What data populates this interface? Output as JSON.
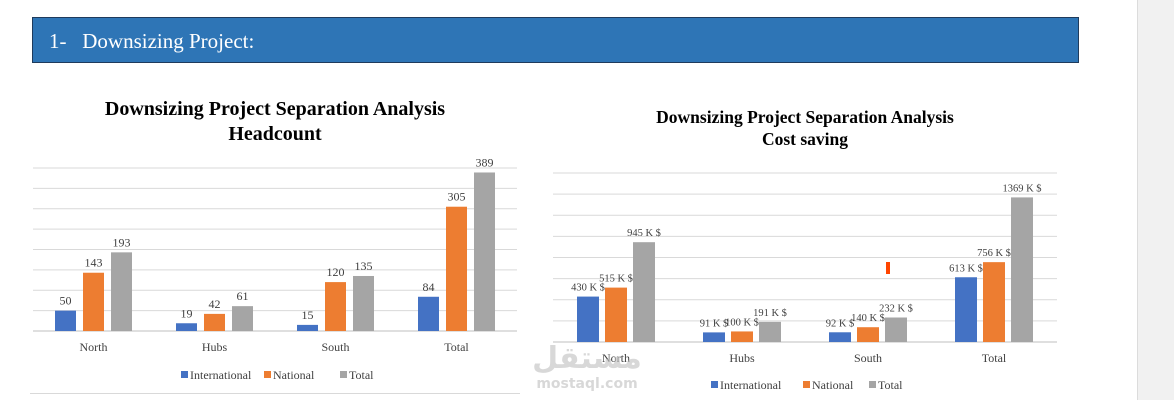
{
  "header": {
    "title": "1-   Downsizing Project:"
  },
  "colors": {
    "header_bg": "#2e75b6",
    "international": "#4472c4",
    "national": "#ed7d31",
    "total": "#a5a5a5",
    "grid": "#d9d9d9",
    "marker": "#ff4500"
  },
  "watermark": {
    "text_ar": "مستقل",
    "text_en": "mostaql.com"
  },
  "chart_data": [
    {
      "type": "bar",
      "title_line1": "Downsizing Project Separation Analysis",
      "title_line2": "Headcount",
      "categories": [
        "North",
        "Hubs",
        "South",
        "Total"
      ],
      "series": [
        {
          "name": "International",
          "values": [
            50,
            19,
            15,
            84
          ],
          "labels": [
            "50",
            "19",
            "15",
            "84"
          ]
        },
        {
          "name": "National",
          "values": [
            143,
            42,
            120,
            305
          ],
          "labels": [
            "143",
            "42",
            "120",
            "305"
          ]
        },
        {
          "name": "Total",
          "values": [
            193,
            61,
            135,
            389
          ],
          "labels": [
            "193",
            "61",
            "135",
            "389"
          ]
        }
      ],
      "ylim": [
        0,
        400
      ],
      "grid": true,
      "legend": "bottom"
    },
    {
      "type": "bar",
      "title_line1": "Downsizing Project Separation Analysis",
      "title_line2": "Cost saving",
      "categories": [
        "North",
        "Hubs",
        "South",
        "Total"
      ],
      "series": [
        {
          "name": "International",
          "values": [
            430,
            91,
            92,
            613
          ],
          "labels": [
            "430 K $",
            "91 K $",
            "92 K $",
            "613 K $"
          ]
        },
        {
          "name": "National",
          "values": [
            515,
            100,
            140,
            756
          ],
          "labels": [
            "515 K $",
            "100 K $",
            "140 K $",
            "756 K $"
          ]
        },
        {
          "name": "Total",
          "values": [
            945,
            191,
            232,
            1369
          ],
          "labels": [
            "945 K $",
            "191 K $",
            "232 K $",
            "1369 K $"
          ]
        }
      ],
      "ylim": [
        0,
        1600
      ],
      "grid": true,
      "legend": "bottom"
    }
  ]
}
